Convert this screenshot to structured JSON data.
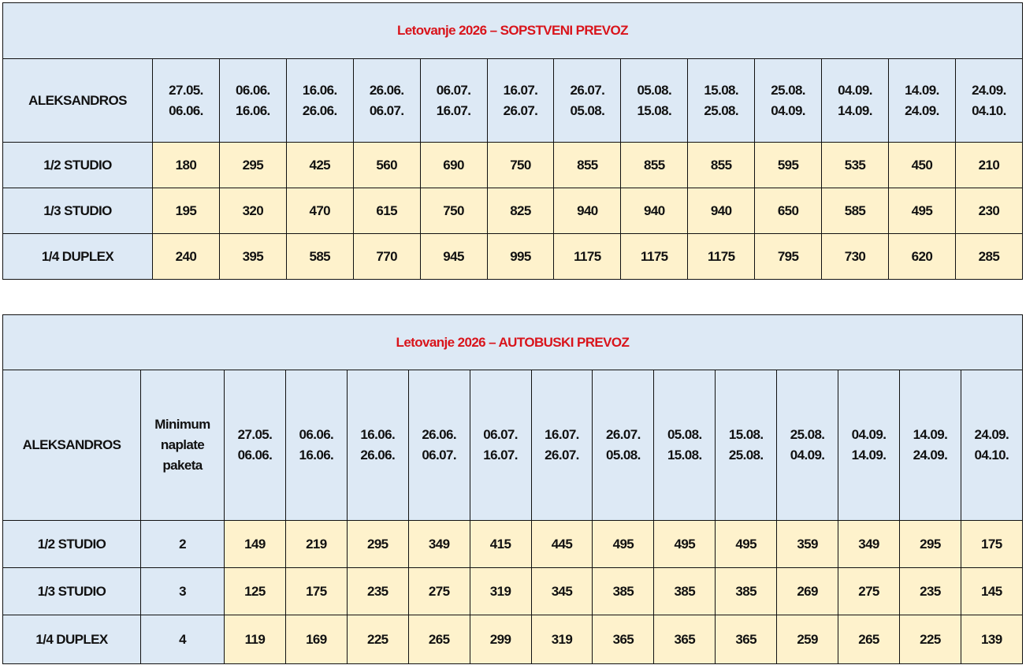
{
  "periods": [
    "27.05.|06.06.",
    "06.06.|16.06.",
    "16.06.|26.06.",
    "26.06.|06.07.",
    "06.07.|16.07.",
    "16.07.|26.07.",
    "26.07.|05.08.",
    "05.08.|15.08.",
    "15.08.|25.08.",
    "25.08.|04.09.",
    "04.09.|14.09.",
    "14.09.|24.09.",
    "24.09.|04.10."
  ],
  "colors": {
    "header_bg": "#dde9f5",
    "price_bg": "#fef2cc",
    "title": "#d9141b"
  },
  "tables": [
    {
      "title": "Letovanje 2026 – SOPSTVENI PREVOZ",
      "hotel": "ALEKSANDROS",
      "rows": [
        {
          "label": "1/2 STUDIO",
          "prices": [
            "180",
            "295",
            "425",
            "560",
            "690",
            "750",
            "855",
            "855",
            "855",
            "595",
            "535",
            "450",
            "210"
          ]
        },
        {
          "label": "1/3 STUDIO",
          "prices": [
            "195",
            "320",
            "470",
            "615",
            "750",
            "825",
            "940",
            "940",
            "940",
            "650",
            "585",
            "495",
            "230"
          ]
        },
        {
          "label": "1/4 DUPLEX",
          "prices": [
            "240",
            "395",
            "585",
            "770",
            "945",
            "995",
            "1175",
            "1175",
            "1175",
            "795",
            "730",
            "620",
            "285"
          ]
        }
      ]
    },
    {
      "title": "Letovanje 2026 – AUTOBUSKI PREVOZ",
      "hotel": "ALEKSANDROS",
      "min_header": "Minimum naplate paketa",
      "rows": [
        {
          "label": "1/2 STUDIO",
          "min": "2",
          "prices": [
            "149",
            "219",
            "295",
            "349",
            "415",
            "445",
            "495",
            "495",
            "495",
            "359",
            "349",
            "295",
            "175"
          ]
        },
        {
          "label": "1/3 STUDIO",
          "min": "3",
          "prices": [
            "125",
            "175",
            "235",
            "275",
            "319",
            "345",
            "385",
            "385",
            "385",
            "269",
            "275",
            "235",
            "145"
          ]
        },
        {
          "label": "1/4 DUPLEX",
          "min": "4",
          "prices": [
            "119",
            "169",
            "225",
            "265",
            "299",
            "319",
            "365",
            "365",
            "365",
            "259",
            "265",
            "225",
            "139"
          ]
        }
      ]
    }
  ]
}
